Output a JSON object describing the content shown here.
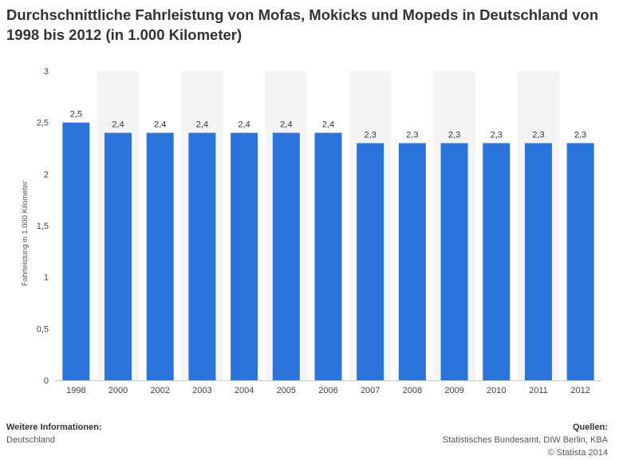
{
  "chart_data": {
    "type": "bar",
    "title": "Durchschnittliche Fahrleistung von Mofas, Mokicks und Mopeds in Deutschland von 1998 bis 2012 (in 1.000 Kilometer)",
    "xlabel": "",
    "ylabel": "Fahrleistung in 1.000 Kilometer",
    "categories": [
      "1998",
      "2000",
      "2002",
      "2003",
      "2004",
      "2005",
      "2006",
      "2007",
      "2008",
      "2009",
      "2010",
      "2011",
      "2012"
    ],
    "values": [
      2.5,
      2.4,
      2.4,
      2.4,
      2.4,
      2.4,
      2.4,
      2.3,
      2.3,
      2.3,
      2.3,
      2.3,
      2.3
    ],
    "value_labels": [
      "2,5",
      "2,4",
      "2,4",
      "2,4",
      "2,4",
      "2,4",
      "2,4",
      "2,3",
      "2,3",
      "2,3",
      "2,3",
      "2,3",
      "2,3"
    ],
    "ylim": [
      0,
      3
    ],
    "yticks": [
      0,
      0.5,
      1,
      1.5,
      2,
      2.5,
      3
    ],
    "ytick_labels": [
      "0",
      "0,5",
      "1",
      "1,5",
      "2",
      "2,5",
      "3"
    ],
    "grid": false,
    "legend": "none",
    "bar_color": "#2a74dc",
    "band_color": "#f4f4f4"
  },
  "footer": {
    "left_heading": "Weitere Informationen:",
    "left_text": "Deutschland",
    "right_heading": "Quellen:",
    "right_line1": "Statistisches Bundesamt, DIW Berlin, KBA",
    "right_line2": "© Statista 2014"
  }
}
